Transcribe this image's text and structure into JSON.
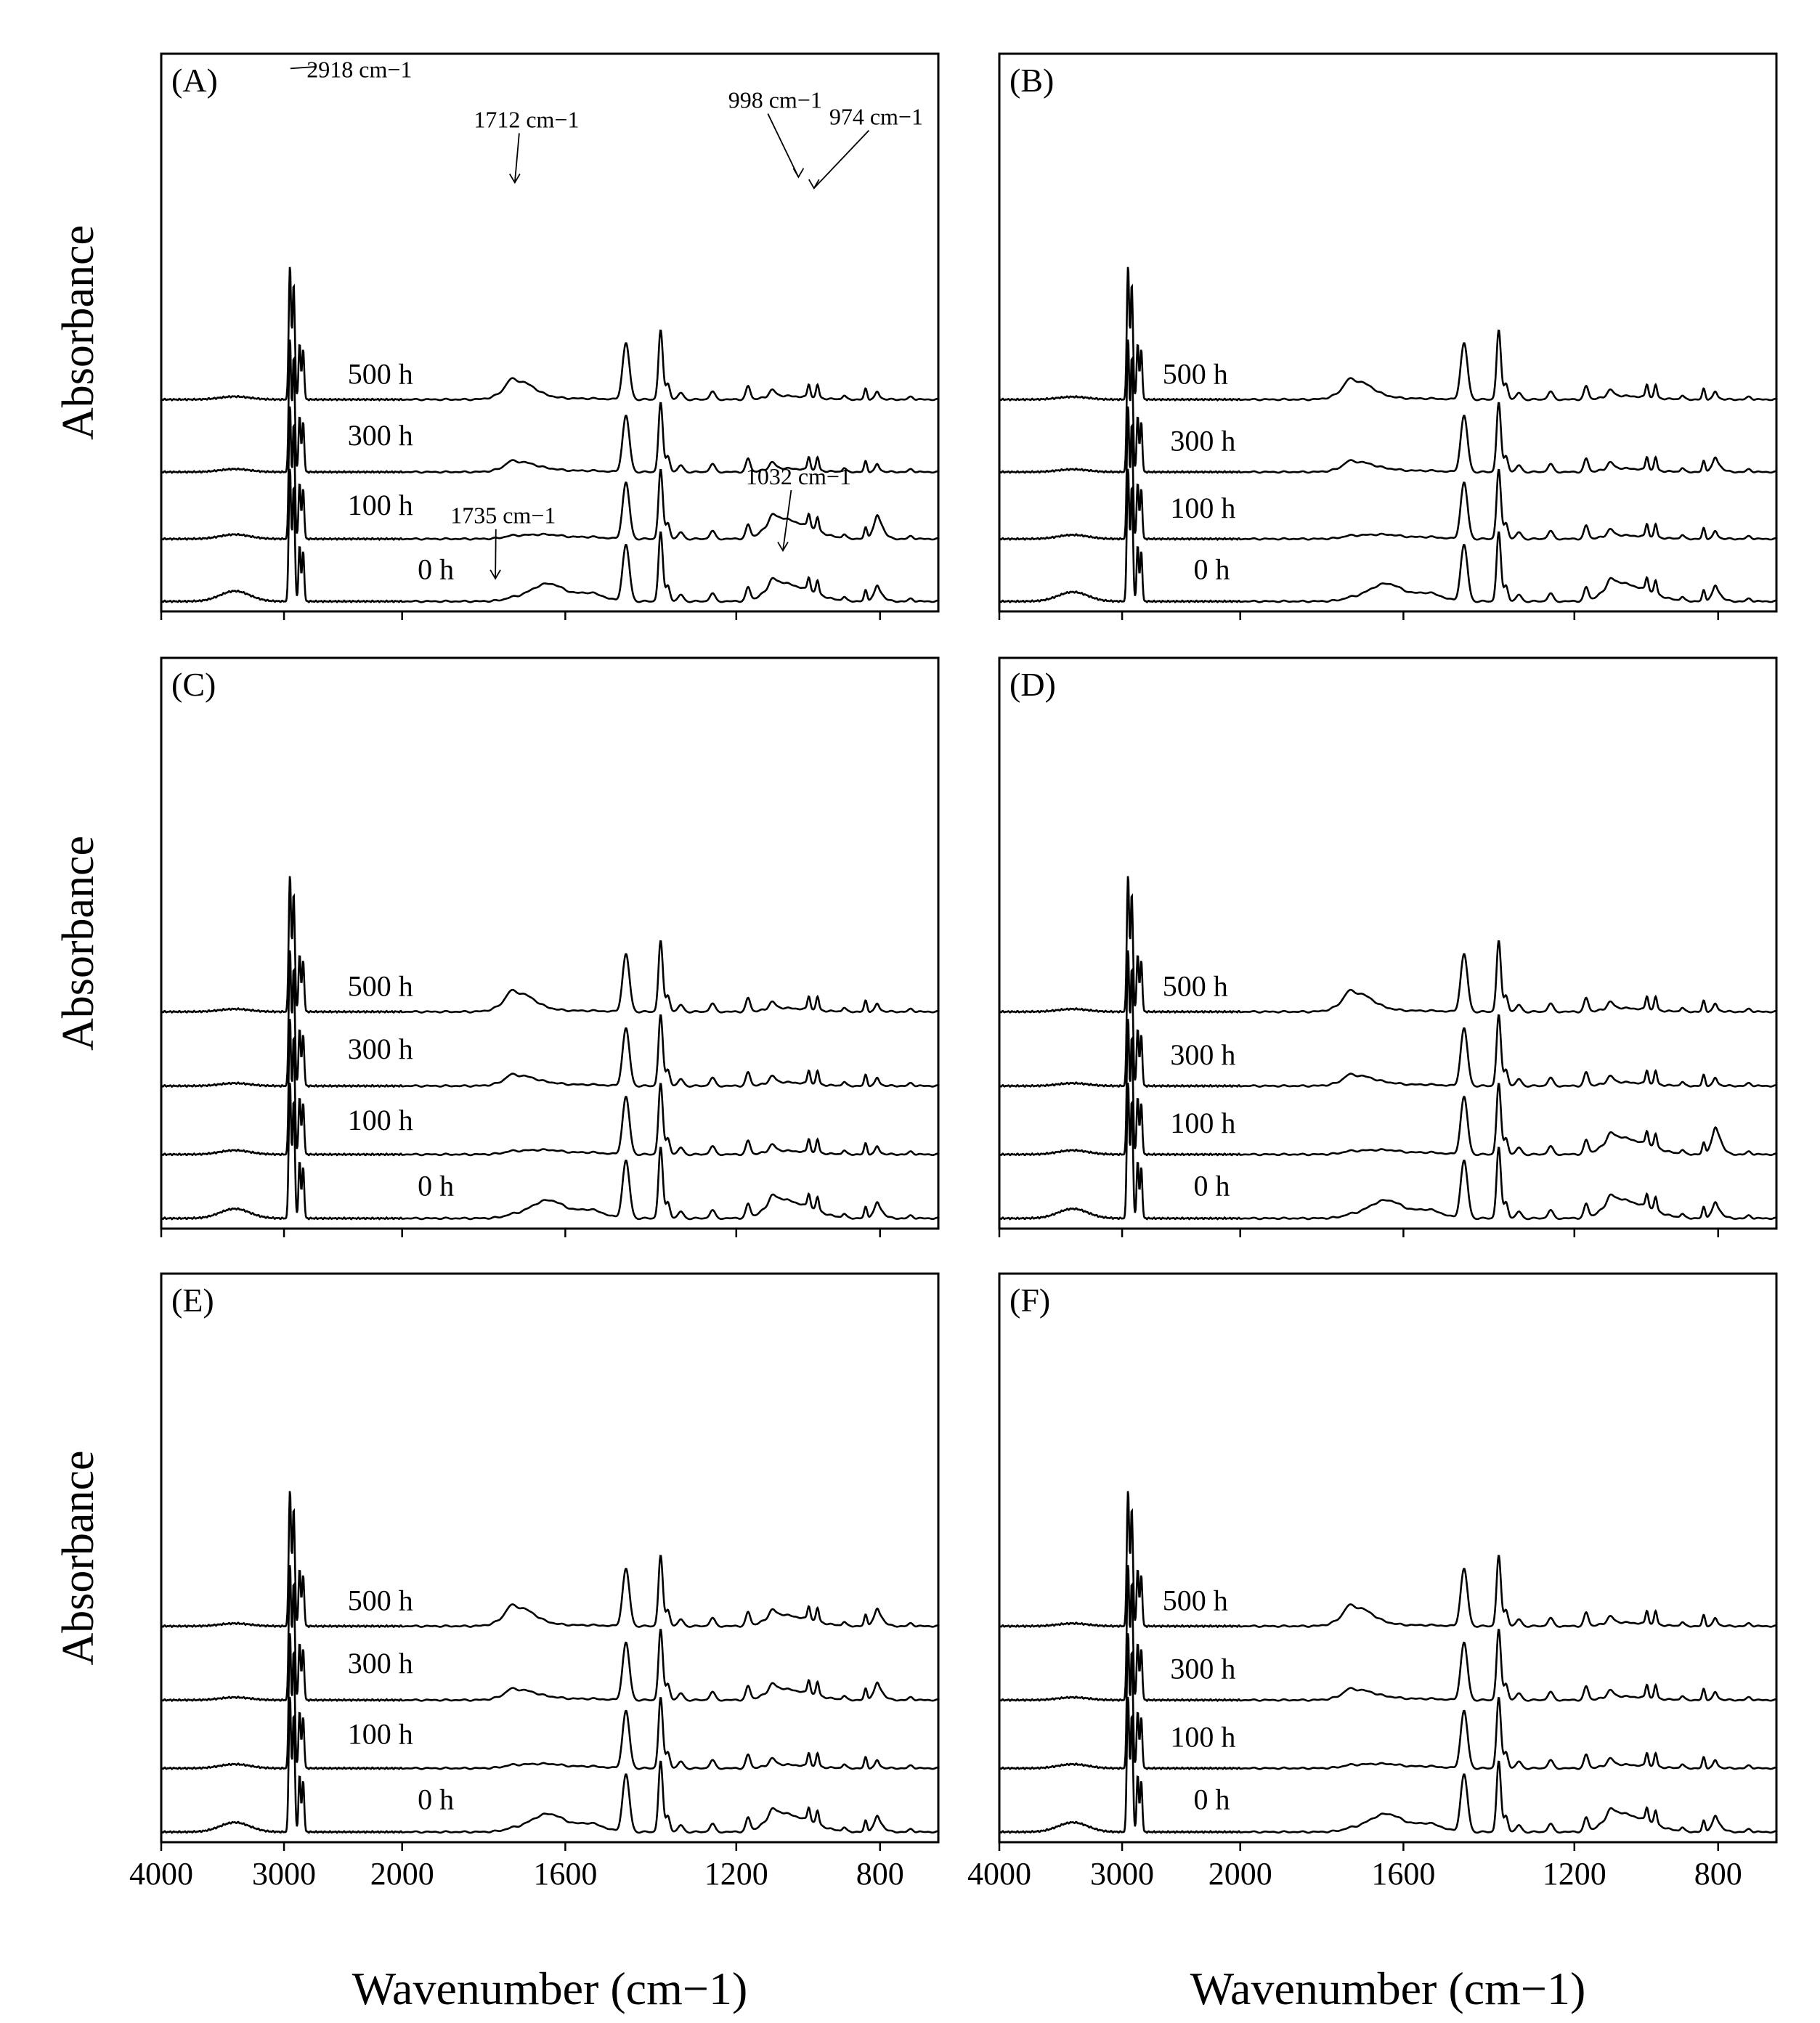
{
  "figure": {
    "y_axis_label": "Absorbance",
    "x_axis_label": "Wavenumber (cm−1)"
  },
  "chart_data": [
    {
      "type": "line",
      "panel": "(A)",
      "xlabel": "Wavenumber (cm−1)",
      "ylabel": "Absorbance",
      "xticks": [
        "4000",
        "3000",
        "2000",
        "1600",
        "1200",
        "800"
      ],
      "x_axis": "reversed, split scale",
      "series": [
        {
          "name": "0 h"
        },
        {
          "name": "100 h"
        },
        {
          "name": "300 h"
        },
        {
          "name": "500 h"
        }
      ],
      "annotations": [
        "2918 cm−1",
        "1712 cm−1",
        "998 cm−1",
        "974 cm−1",
        "1735 cm−1",
        "1032 cm−1"
      ]
    },
    {
      "type": "line",
      "panel": "(B)",
      "xlabel": "Wavenumber (cm−1)",
      "ylabel": "Absorbance",
      "xticks": [
        "4000",
        "3000",
        "2000",
        "1600",
        "1200",
        "800"
      ],
      "series": [
        {
          "name": "0 h"
        },
        {
          "name": "100 h"
        },
        {
          "name": "300 h"
        },
        {
          "name": "500 h"
        }
      ]
    },
    {
      "type": "line",
      "panel": "(C)",
      "xlabel": "Wavenumber (cm−1)",
      "ylabel": "Absorbance",
      "xticks": [
        "4000",
        "3000",
        "2000",
        "1600",
        "1200",
        "800"
      ],
      "series": [
        {
          "name": "0 h"
        },
        {
          "name": "100 h"
        },
        {
          "name": "300 h"
        },
        {
          "name": "500 h"
        }
      ]
    },
    {
      "type": "line",
      "panel": "(D)",
      "xlabel": "Wavenumber (cm−1)",
      "ylabel": "Absorbance",
      "xticks": [
        "4000",
        "3000",
        "2000",
        "1600",
        "1200",
        "800"
      ],
      "series": [
        {
          "name": "0 h"
        },
        {
          "name": "100 h"
        },
        {
          "name": "300 h"
        },
        {
          "name": "500 h"
        }
      ]
    },
    {
      "type": "line",
      "panel": "(E)",
      "xlabel": "Wavenumber (cm−1)",
      "ylabel": "Absorbance",
      "xticks": [
        "4000",
        "3000",
        "2000",
        "1600",
        "1200",
        "800"
      ],
      "series": [
        {
          "name": "0 h"
        },
        {
          "name": "100 h"
        },
        {
          "name": "300 h"
        },
        {
          "name": "500 h"
        }
      ]
    },
    {
      "type": "line",
      "panel": "(F)",
      "xlabel": "Wavenumber (cm−1)",
      "ylabel": "Absorbance",
      "xticks": [
        "4000",
        "3000",
        "2000",
        "1600",
        "1200",
        "800"
      ],
      "series": [
        {
          "name": "0 h"
        },
        {
          "name": "100 h"
        },
        {
          "name": "300 h"
        },
        {
          "name": "500 h"
        }
      ]
    }
  ]
}
